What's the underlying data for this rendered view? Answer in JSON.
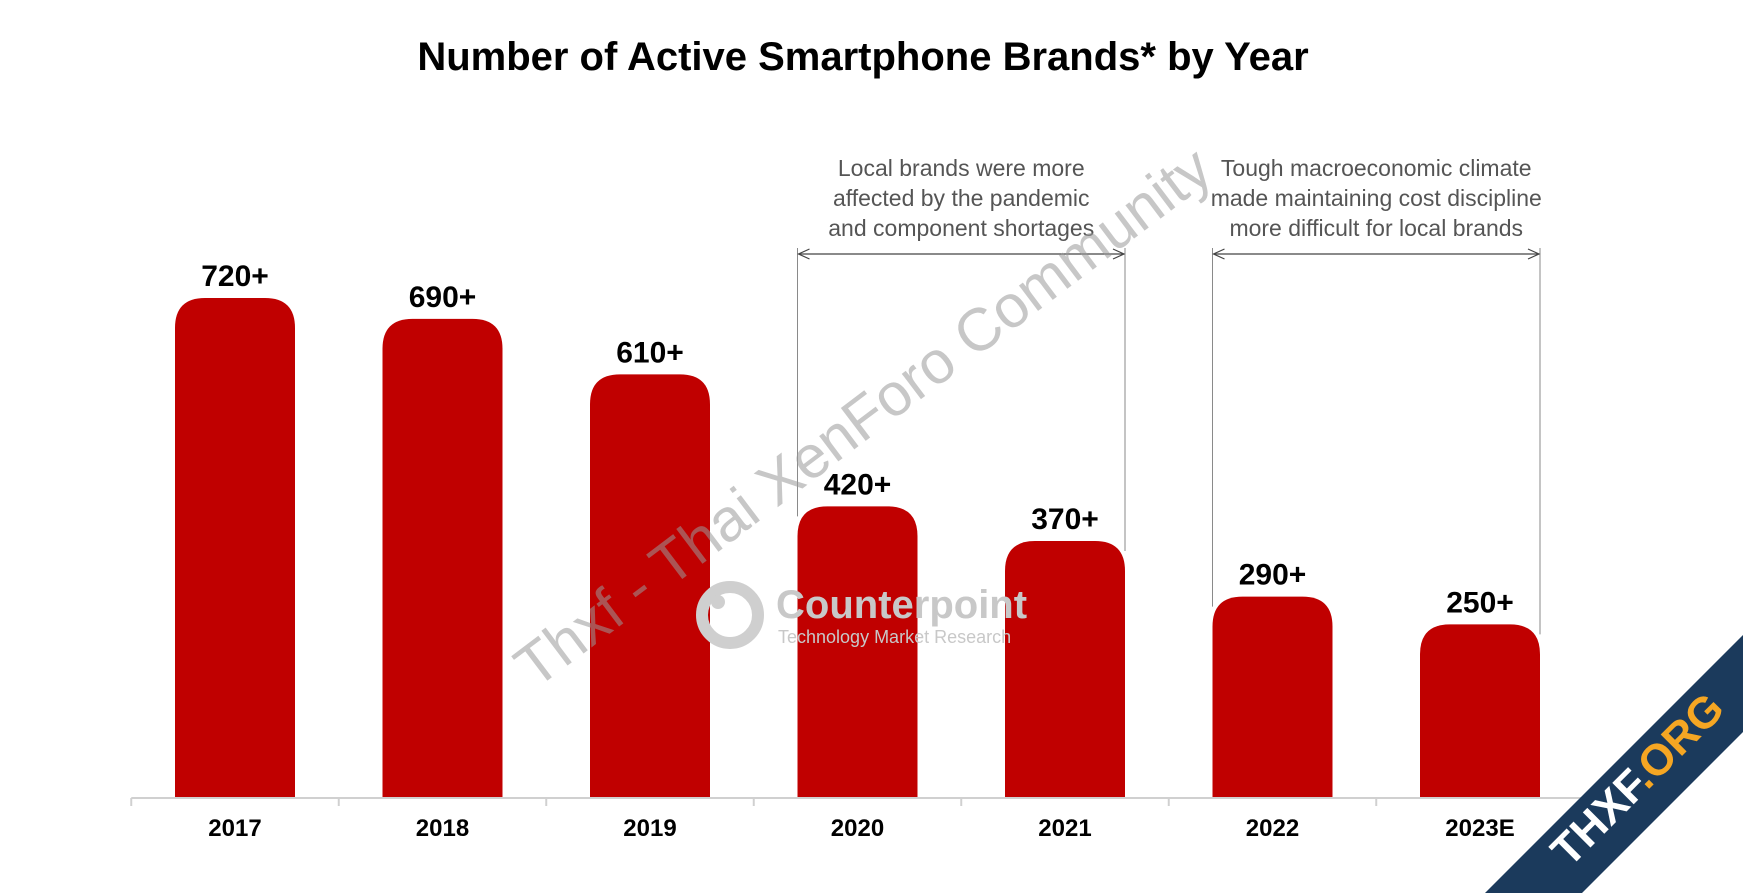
{
  "chart_data": {
    "type": "bar",
    "title": "Number of Active Smartphone Brands* by Year",
    "categories": [
      "2017",
      "2018",
      "2019",
      "2020",
      "2021",
      "2022",
      "2023E"
    ],
    "values": [
      720,
      690,
      610,
      420,
      370,
      290,
      250
    ],
    "value_labels": [
      "720+",
      "690+",
      "610+",
      "420+",
      "370+",
      "290+",
      "250+"
    ],
    "xlabel": "",
    "ylabel": "",
    "ylim": [
      0,
      800
    ],
    "grid": false,
    "legend": "none",
    "bar_color": "#C00000",
    "annotations": [
      {
        "lines": [
          "Local brands were more",
          "affected by the pandemic",
          "and component shortages"
        ],
        "from": "2020",
        "to": "2021"
      },
      {
        "lines": [
          "Tough macroeconomic climate",
          "made maintaining cost discipline",
          "more difficult for local brands"
        ],
        "from": "2022",
        "to": "2023E"
      }
    ]
  },
  "watermark": {
    "text": "Thxf - Thai XenForo Community",
    "logo_name": "Counterpoint",
    "logo_tagline": "Technology Market Research",
    "corner_text": "THXF.ORG",
    "corner_color": "#1B3A5C",
    "corner_accent": "#F5A623"
  }
}
